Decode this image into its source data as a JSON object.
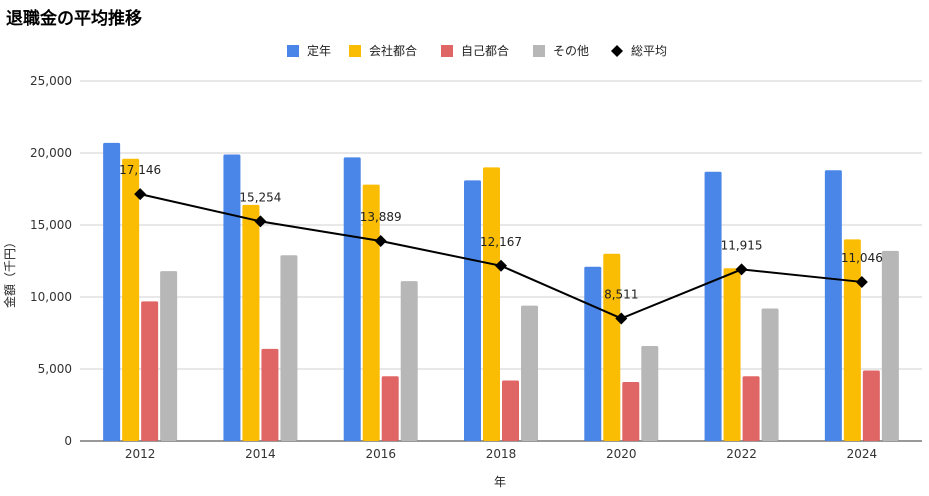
{
  "chart_data": {
    "type": "bar",
    "title": "退職金の平均推移",
    "xlabel": "年",
    "ylabel": "金額（千円）",
    "ylim": [
      0,
      25000
    ],
    "yticks": [
      0,
      5000,
      10000,
      15000,
      20000,
      25000
    ],
    "ytick_labels": [
      "0",
      "5,000",
      "10,000",
      "15,000",
      "20,000",
      "25,000"
    ],
    "grid": true,
    "legend_position": "top",
    "categories": [
      "2012",
      "2014",
      "2016",
      "2018",
      "2020",
      "2022",
      "2024"
    ],
    "series": [
      {
        "name": "定年",
        "type": "bar",
        "color": "#4a86e8",
        "values": [
          20700,
          19900,
          19700,
          18100,
          12100,
          18700,
          18800
        ]
      },
      {
        "name": "会社都合",
        "type": "bar",
        "color": "#fbbc04",
        "values": [
          19600,
          16400,
          17800,
          19000,
          13000,
          12000,
          14000
        ]
      },
      {
        "name": "自己都合",
        "type": "bar",
        "color": "#e06666",
        "values": [
          9700,
          6400,
          4500,
          4200,
          4100,
          4500,
          4900
        ]
      },
      {
        "name": "その他",
        "type": "bar",
        "color": "#b7b7b7",
        "values": [
          11800,
          12900,
          11100,
          9400,
          6600,
          9200,
          13200
        ]
      },
      {
        "name": "総平均",
        "type": "line",
        "marker": "diamond",
        "color": "#000000",
        "values": [
          17146,
          15254,
          13889,
          12167,
          8511,
          11915,
          11046
        ],
        "labels": [
          "17,146",
          "15,254",
          "13,889",
          "12,167",
          "8,511",
          "11,915",
          "11,046"
        ]
      }
    ]
  }
}
